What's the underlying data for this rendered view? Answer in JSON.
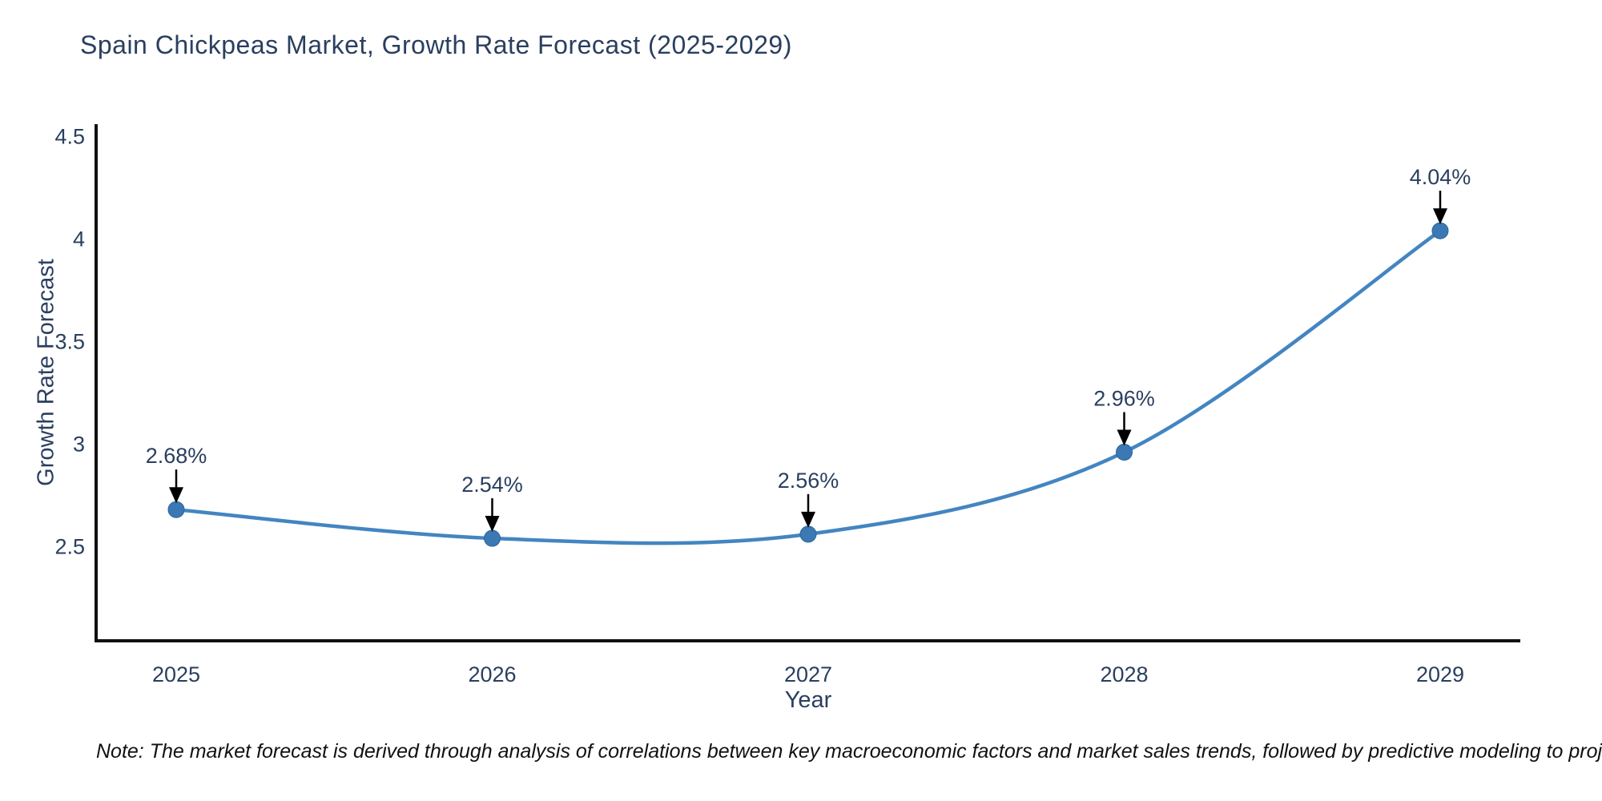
{
  "note": "Note: The market forecast is derived through analysis of correlations between key macroeconomic factors and market sales trends, followed by predictive modeling to project future sales",
  "chart_data": {
    "type": "line",
    "title": "Spain Chickpeas Market, Growth Rate Forecast (2025-2029)",
    "xlabel": "Year",
    "ylabel": "Growth Rate Forecast",
    "x": [
      2025,
      2026,
      2027,
      2028,
      2029
    ],
    "x_tick_labels": [
      "2025",
      "2026",
      "2027",
      "2028",
      "2029"
    ],
    "series": [
      {
        "name": "Growth Rate Forecast",
        "values": [
          2.68,
          2.54,
          2.56,
          2.96,
          4.04
        ],
        "point_labels": [
          "2.68%",
          "2.54%",
          "2.56%",
          "2.96%",
          "4.04%"
        ]
      }
    ],
    "yticks": [
      2.5,
      3,
      3.5,
      4,
      4.5
    ],
    "ytick_labels": [
      "2.5",
      "3",
      "3.5",
      "4",
      "4.5"
    ],
    "ylim": [
      2.04,
      4.56
    ],
    "grid": false,
    "legend": "none",
    "line_shape": "spline",
    "colors": {
      "line": "#4385c1",
      "marker": "#3a79b3",
      "marker_edge": "#2f6397",
      "text": "#2a3f5f",
      "axis": "#111111",
      "annotation_arrow": "#000000",
      "background": "#ffffff"
    }
  }
}
